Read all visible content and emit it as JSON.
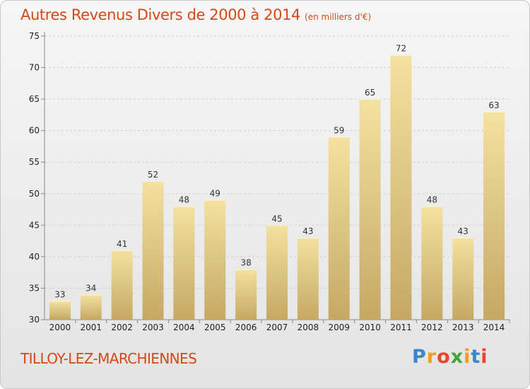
{
  "header": {
    "title": "Autres Revenus Divers de 2000 à 2014",
    "unit": "(en milliers d'€)"
  },
  "footer": {
    "commune": "TILLOY-LEZ-MARCHIENNES",
    "logo_letters": [
      "P",
      "r",
      "o",
      "x",
      "i",
      "t",
      "i"
    ],
    "logo_colors": [
      "#3a86c8",
      "#f29b1d",
      "#e8452c",
      "#47a23f",
      "#f29b1d",
      "#3a86c8",
      "#e8452c"
    ]
  },
  "colors": {
    "title": "#d24a17",
    "bar_top": "#f5e1a0",
    "bar_bottom": "#c4a964",
    "grid": "#d0d0d0"
  },
  "chart_data": {
    "type": "bar",
    "title": "Autres Revenus Divers de 2000 à 2014",
    "categories": [
      "2000",
      "2001",
      "2002",
      "2003",
      "2004",
      "2005",
      "2006",
      "2007",
      "2008",
      "2009",
      "2010",
      "2011",
      "2012",
      "2013",
      "2014"
    ],
    "values": [
      33,
      34,
      41,
      52,
      48,
      49,
      38,
      45,
      43,
      59,
      65,
      72,
      48,
      43,
      63
    ],
    "ylim": [
      30,
      75
    ],
    "yticks": [
      30,
      35,
      40,
      45,
      50,
      55,
      60,
      65,
      70,
      75
    ],
    "grid": true,
    "xlabel": "",
    "ylabel": ""
  }
}
